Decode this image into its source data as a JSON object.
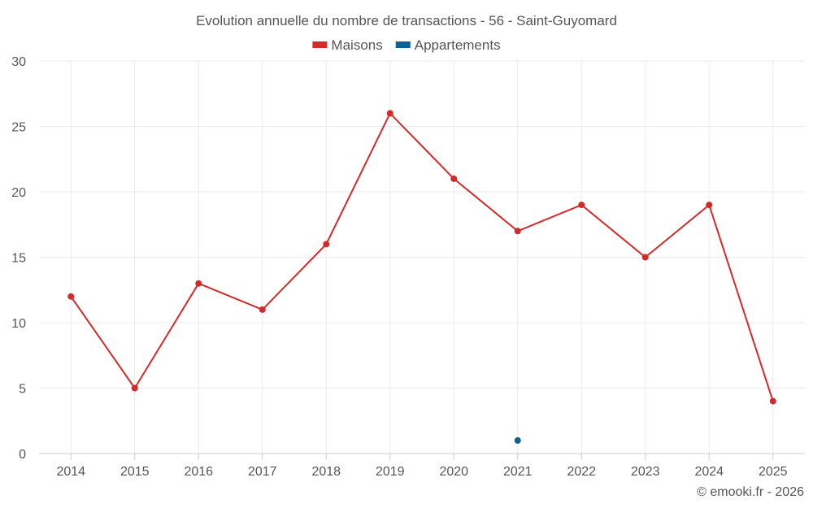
{
  "chart_data": {
    "type": "line",
    "title": "Evolution annuelle du nombre de transactions - 56 - Saint-Guyomard",
    "categories": [
      "2014",
      "2015",
      "2016",
      "2017",
      "2018",
      "2019",
      "2020",
      "2021",
      "2022",
      "2023",
      "2024",
      "2025"
    ],
    "series": [
      {
        "name": "Maisons",
        "color": "#d32a2a",
        "values": [
          12,
          5,
          13,
          11,
          16,
          26,
          21,
          17,
          19,
          15,
          19,
          4
        ]
      },
      {
        "name": "Appartements",
        "color": "#0c6197",
        "values": [
          null,
          null,
          null,
          null,
          null,
          null,
          null,
          1,
          null,
          null,
          null,
          null
        ]
      }
    ],
    "ylim": [
      0,
      30
    ],
    "yticks": [
      "0",
      "5",
      "10",
      "15",
      "20",
      "25",
      "30"
    ],
    "grid": true,
    "legend": "top-center",
    "xlabel": "",
    "ylabel": ""
  },
  "credit": "© emooki.fr - 2026"
}
